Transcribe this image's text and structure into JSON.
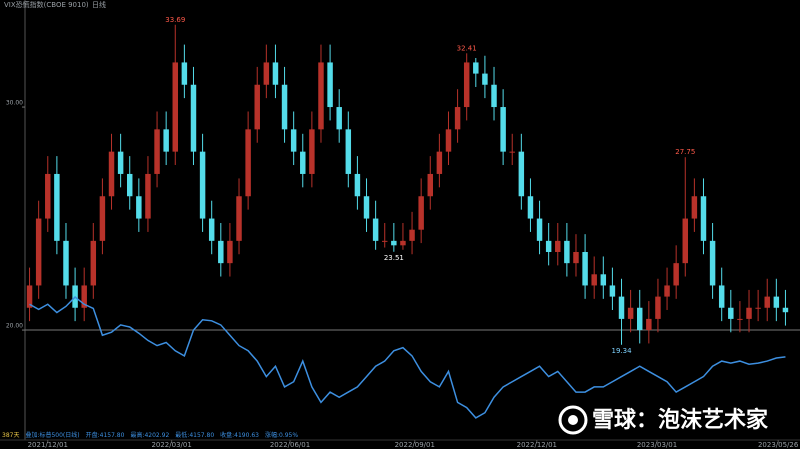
{
  "chart_data": {
    "type": "candlestick",
    "title": "VIX恐慌指数(CBOE 9010)",
    "period": "日线",
    "xlim": [
      0,
      84
    ],
    "ylim": [
      15.07,
      34.8
    ],
    "yticks": [
      {
        "value": 30,
        "label": "30.00"
      },
      {
        "value": 20,
        "label": "20.00"
      }
    ],
    "hline": 20,
    "xticks": [
      {
        "value": 2.5,
        "label": "2021/12/01"
      },
      {
        "value": 16.1,
        "label": "2022/03/01"
      },
      {
        "value": 29.1,
        "label": "2022/06/01"
      },
      {
        "value": 42.8,
        "label": "2022/09/01"
      },
      {
        "value": 56.2,
        "label": "2022/12/01"
      },
      {
        "value": 69.4,
        "label": "2023/03/01"
      },
      {
        "value": 82.7,
        "label": "2023/05/26"
      }
    ],
    "up_color": "#b8322a",
    "down_color": "#54dcea",
    "open": [
      21,
      22,
      25,
      27,
      24,
      22,
      21,
      22,
      24,
      26,
      28,
      27,
      26,
      25,
      27,
      29,
      28,
      32,
      31,
      28,
      25,
      24,
      23,
      24,
      26,
      29,
      31,
      32,
      31,
      29,
      28,
      27,
      29,
      32,
      30,
      29,
      27,
      26,
      25,
      24,
      24,
      23.8,
      24,
      24.5,
      26,
      27,
      28,
      29,
      30,
      32,
      31.5,
      31,
      30,
      28,
      28,
      26,
      25,
      24,
      23.5,
      24,
      23,
      23.5,
      22,
      22.5,
      22,
      21.5,
      20.5,
      21,
      20,
      20.5,
      21.5,
      22,
      23,
      25,
      26,
      24,
      22,
      21,
      20.5,
      20.5,
      21,
      21,
      21.5,
      21
    ],
    "high": [
      22.8,
      25.8,
      27.8,
      27.8,
      24.8,
      22.8,
      22.8,
      24.8,
      26.8,
      28.8,
      28.8,
      27.8,
      26.8,
      27.8,
      29.8,
      29.8,
      33.69,
      32.8,
      31.8,
      28.8,
      25.8,
      24.8,
      24.8,
      26.8,
      29.8,
      31.8,
      32.8,
      32.8,
      31.8,
      29.8,
      28.8,
      29.8,
      32.8,
      32.8,
      30.8,
      29.8,
      27.8,
      26.8,
      25.8,
      24.8,
      24.8,
      24.8,
      25.3,
      26.8,
      27.8,
      28.8,
      29.8,
      30.8,
      32.41,
      32.2,
      32.3,
      31.8,
      30.8,
      28.8,
      28.8,
      26.8,
      25.8,
      24.8,
      24.8,
      24.8,
      24.3,
      24.3,
      23.3,
      23.3,
      22.8,
      22.3,
      21.8,
      21.8,
      21.3,
      22.3,
      22.8,
      23.8,
      27.75,
      26.8,
      26.8,
      24.8,
      22.8,
      21.8,
      21.3,
      21.8,
      21.8,
      22.3,
      22.3,
      21.8
    ],
    "low": [
      20.4,
      21.4,
      24.4,
      23.4,
      21.4,
      20.4,
      20.4,
      21.4,
      23.4,
      25.4,
      26.4,
      25.4,
      24.4,
      24.4,
      26.4,
      27.4,
      27.4,
      30.4,
      27.4,
      24.4,
      23.4,
      22.4,
      22.4,
      23.4,
      25.4,
      28.4,
      30.4,
      30.4,
      28.4,
      27.4,
      26.4,
      26.4,
      28.4,
      29.4,
      28.4,
      26.4,
      25.4,
      24.4,
      23.6,
      23.7,
      23.51,
      23.6,
      23.4,
      23.9,
      25.4,
      26.4,
      27.4,
      28.4,
      29.4,
      30.9,
      30.4,
      29.4,
      27.4,
      27.4,
      25.4,
      24.4,
      23.4,
      22.9,
      22.9,
      22.4,
      22.4,
      21.4,
      21.4,
      21.4,
      20.9,
      19.34,
      19.9,
      19.4,
      19.4,
      19.9,
      20.9,
      21.4,
      22.4,
      24.4,
      23.4,
      21.4,
      20.4,
      19.9,
      19.9,
      19.9,
      20.4,
      20.4,
      20.4,
      20.2
    ],
    "close": [
      22,
      25,
      27,
      24,
      22,
      21,
      22,
      24,
      26,
      28,
      27,
      26,
      25,
      27,
      29,
      28,
      32,
      31,
      28,
      25,
      24,
      23,
      24,
      26,
      29,
      31,
      32,
      31,
      29,
      28,
      27,
      29,
      32,
      30,
      29,
      27,
      26,
      25,
      24,
      24,
      23.8,
      24,
      24.5,
      26,
      27,
      28,
      29,
      30,
      32,
      31.5,
      31,
      30,
      28,
      28,
      26,
      25,
      24,
      23.5,
      24,
      23,
      23.5,
      22,
      22.5,
      22,
      21.5,
      20.5,
      21,
      20,
      20.5,
      21.5,
      22,
      23,
      25,
      26,
      24,
      22,
      21,
      20.5,
      20.5,
      21,
      21,
      21.5,
      21,
      20.8
    ],
    "annotations": [
      {
        "label": "33.69",
        "x": 16,
        "value": 33.69,
        "color": "#ff5a4a",
        "pos": "above"
      },
      {
        "label": "32.41",
        "x": 48,
        "value": 32.41,
        "color": "#ff5a4a",
        "pos": "above"
      },
      {
        "label": "27.75",
        "x": 72,
        "value": 27.75,
        "color": "#ff5a4a",
        "pos": "above"
      },
      {
        "label": "23.51",
        "x": 40,
        "value": 23.51,
        "color": "#ffffff",
        "pos": "below"
      },
      {
        "label": "19.34",
        "x": 65,
        "value": 19.34,
        "color": "#7fd3ff",
        "pos": "below"
      }
    ],
    "y2lim": [
      3386,
      7646
    ],
    "overlay": {
      "name": "标普500",
      "color": "#3d8fe0",
      "axis": "y2",
      "values": [
        4700,
        4650,
        4700,
        4620,
        4680,
        4770,
        4700,
        4660,
        4400,
        4430,
        4500,
        4480,
        4420,
        4350,
        4300,
        4330,
        4250,
        4200,
        4450,
        4550,
        4540,
        4500,
        4400,
        4300,
        4250,
        4150,
        4000,
        4100,
        3900,
        3950,
        4150,
        3900,
        3750,
        3850,
        3800,
        3850,
        3900,
        4000,
        4100,
        4150,
        4250,
        4280,
        4200,
        4050,
        3950,
        3900,
        4050,
        3750,
        3700,
        3600,
        3650,
        3800,
        3900,
        3950,
        4000,
        4050,
        4100,
        4000,
        4050,
        3950,
        3850,
        3850,
        3900,
        3900,
        3950,
        4000,
        4050,
        4100,
        4050,
        4000,
        3950,
        3850,
        3900,
        3950,
        4000,
        4100,
        4150,
        4130,
        4150,
        4120,
        4130,
        4150,
        4180,
        4190.63
      ]
    },
    "footer": [
      {
        "text": "387天",
        "color": "#e8c547"
      },
      {
        "text": "叠加:标普500(日线)",
        "color": "#3d8fe0"
      },
      {
        "text": "开盘:4157.80",
        "color": "#3d8fe0"
      },
      {
        "text": "最高:4202.92",
        "color": "#3d8fe0"
      },
      {
        "text": "最低:4157.80",
        "color": "#3d8fe0"
      },
      {
        "text": "收盘:4190.63",
        "color": "#3d8fe0"
      },
      {
        "text": "涨幅:0.95%",
        "color": "#3d8fe0"
      }
    ],
    "watermark": "雪球：泡沫艺术家"
  }
}
